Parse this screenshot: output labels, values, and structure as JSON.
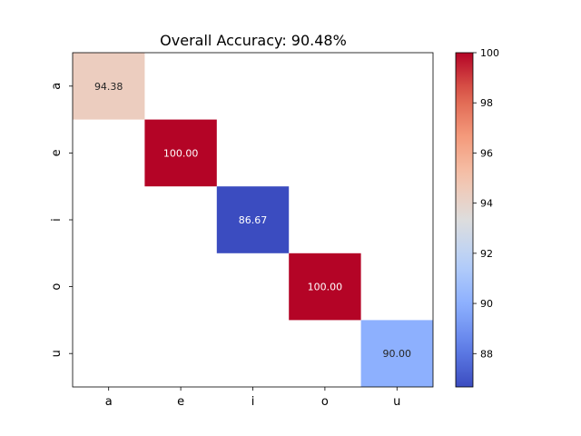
{
  "chart_data": {
    "type": "heatmap",
    "title": "Overall Accuracy: 90.48%",
    "x_categories": [
      "a",
      "e",
      "i",
      "o",
      "u"
    ],
    "y_categories": [
      "a",
      "e",
      "i",
      "o",
      "u"
    ],
    "cells": [
      {
        "row": 0,
        "col": 0,
        "value": 94.38,
        "label": "94.38"
      },
      {
        "row": 1,
        "col": 1,
        "value": 100.0,
        "label": "100.00"
      },
      {
        "row": 2,
        "col": 2,
        "value": 86.67,
        "label": "86.67"
      },
      {
        "row": 3,
        "col": 3,
        "value": 100.0,
        "label": "100.00"
      },
      {
        "row": 4,
        "col": 4,
        "value": 90.0,
        "label": "90.00"
      }
    ],
    "colormap": "coolwarm",
    "colorbar": {
      "range": [
        86.67,
        100
      ],
      "ticks": [
        88,
        90,
        92,
        94,
        96,
        98,
        100
      ]
    },
    "empty_cell_color": "#ffffff"
  }
}
